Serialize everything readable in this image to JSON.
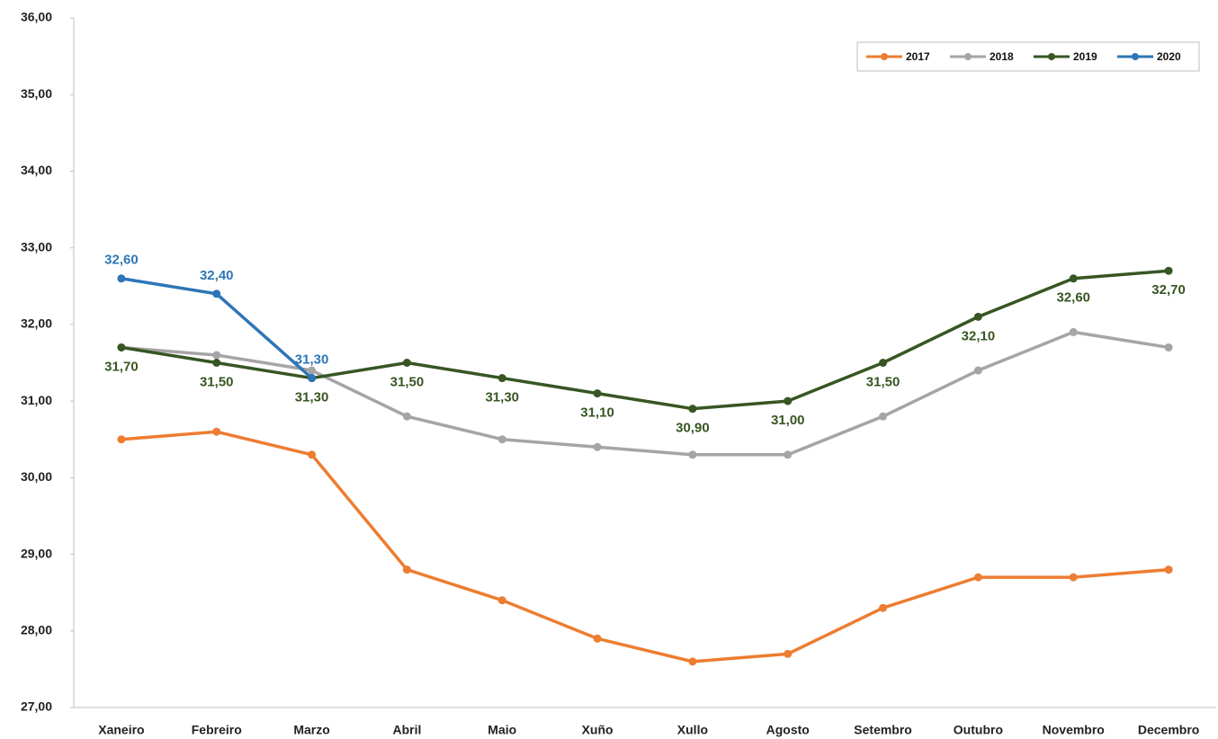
{
  "chart_data": {
    "type": "line",
    "categories": [
      "Xaneiro",
      "Febreiro",
      "Marzo",
      "Abril",
      "Maio",
      "Xuño",
      "Xullo",
      "Agosto",
      "Setembro",
      "Outubro",
      "Novembro",
      "Decembro"
    ],
    "series": [
      {
        "name": "2017",
        "color": "#ed7d31",
        "values": [
          30.5,
          30.6,
          30.3,
          28.8,
          28.4,
          27.9,
          27.6,
          27.7,
          28.3,
          28.7,
          28.7,
          28.8
        ]
      },
      {
        "name": "2018",
        "color": "#a5a5a5",
        "values": [
          31.7,
          31.6,
          31.4,
          30.8,
          30.5,
          30.4,
          30.3,
          30.3,
          30.8,
          31.4,
          31.9,
          31.7
        ]
      },
      {
        "name": "2019",
        "color": "#375623",
        "values": [
          31.7,
          31.5,
          31.3,
          31.5,
          31.3,
          31.1,
          30.9,
          31.0,
          31.5,
          32.1,
          32.6,
          32.7
        ],
        "value_labels": [
          "31,70",
          "31,50",
          "31,30",
          "31,50",
          "31,30",
          "31,10",
          "30,90",
          "31,00",
          "31,50",
          "32,10",
          "32,60",
          "32,70"
        ]
      },
      {
        "name": "2020",
        "color": "#2e75b6",
        "values": [
          32.6,
          32.4,
          31.3,
          null,
          null,
          null,
          null,
          null,
          null,
          null,
          null,
          null
        ],
        "value_labels": [
          "32,60",
          "32,40",
          "31,30",
          null,
          null,
          null,
          null,
          null,
          null,
          null,
          null,
          null
        ]
      }
    ],
    "ylim": [
      27,
      36
    ],
    "yticks": [
      {
        "value": 27,
        "label": "27,00"
      },
      {
        "value": 28,
        "label": "28,00"
      },
      {
        "value": 29,
        "label": "29,00"
      },
      {
        "value": 30,
        "label": "30,00"
      },
      {
        "value": 31,
        "label": "31,00"
      },
      {
        "value": 32,
        "label": "32,00"
      },
      {
        "value": 33,
        "label": "33,00"
      },
      {
        "value": 34,
        "label": "34,00"
      },
      {
        "value": 35,
        "label": "35,00"
      },
      {
        "value": 36,
        "label": "36,00"
      }
    ],
    "grid": false,
    "legend": "top-right"
  }
}
